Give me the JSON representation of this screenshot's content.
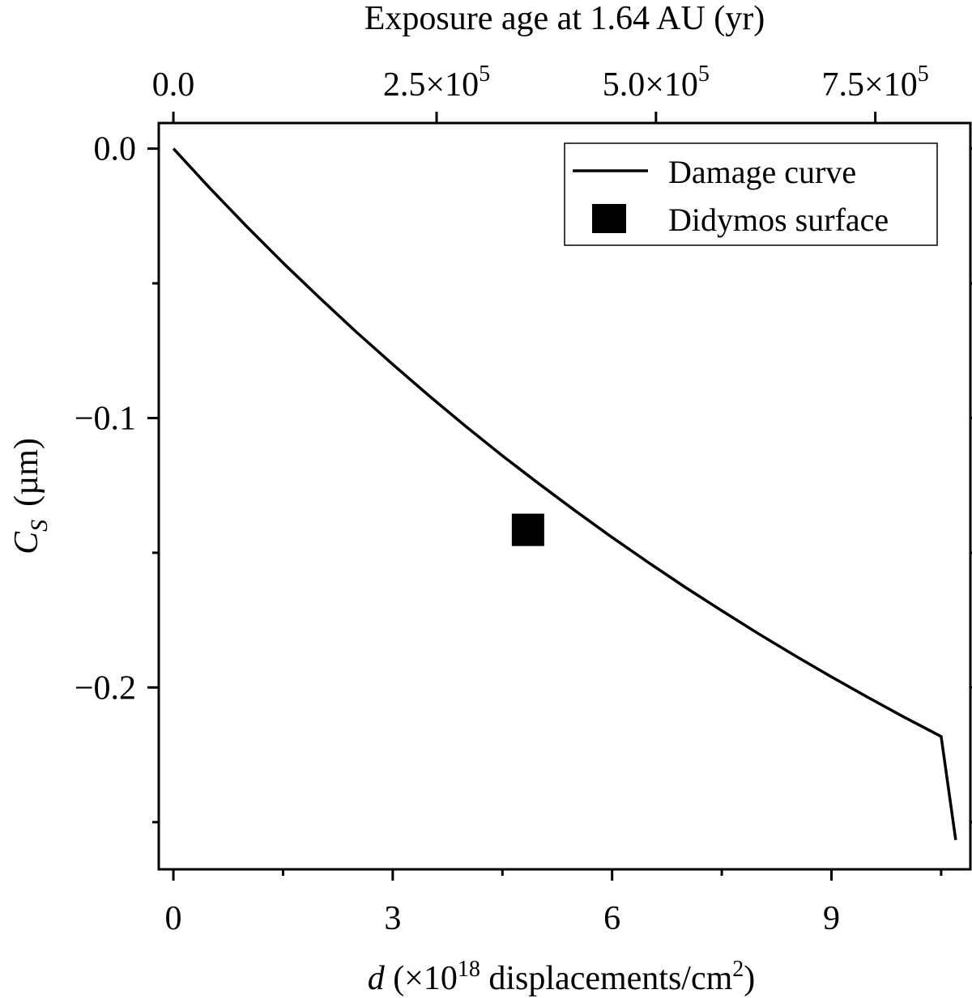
{
  "chart_data": {
    "type": "line",
    "x_axis": {
      "label_var": "d",
      "label_pre": " (×10",
      "label_exp": "18",
      "label_mid": " displacements/cm",
      "label_exp2": "2",
      "label_post": ")",
      "range": [
        -0.2,
        10.9
      ],
      "ticks": [
        0,
        3,
        6,
        9
      ],
      "tick_labels": [
        "0",
        "3",
        "6",
        "9"
      ],
      "minor_ticks": [
        1.5,
        4.5,
        7.5,
        10.5
      ]
    },
    "top_axis": {
      "label": "Exposure age at 1.64 AU (yr)",
      "ticks": [
        0,
        3.6,
        6.6,
        9.6
      ],
      "tick_labels": [
        {
          "mant": "0.0",
          "exp": ""
        },
        {
          "mant": "2.5×10",
          "exp": "5"
        },
        {
          "mant": "5.0×10",
          "exp": "5"
        },
        {
          "mant": "7.5×10",
          "exp": "5"
        }
      ]
    },
    "y_axis": {
      "label_var": "C",
      "label_sub": "S",
      "label_unit": "(µm)",
      "range": [
        -0.2675,
        0.0095
      ],
      "ticks": [
        0.0,
        -0.1,
        -0.2
      ],
      "tick_labels": [
        "0.0",
        "−0.1",
        "−0.2"
      ],
      "minor_ticks": [
        -0.05,
        -0.15,
        -0.25
      ]
    },
    "series": [
      {
        "name": "Damage curve",
        "kind": "line",
        "color": "#000000",
        "x": [
          0,
          0.5,
          1,
          1.5,
          2,
          2.5,
          3,
          3.5,
          4,
          4.5,
          5,
          5.5,
          6,
          6.5,
          7,
          7.5,
          8,
          8.5,
          9,
          9.5,
          10,
          10.5,
          10.7
        ],
        "y": [
          0.0,
          -0.0147,
          -0.0288,
          -0.0424,
          -0.0554,
          -0.068,
          -0.0801,
          -0.0918,
          -0.1031,
          -0.114,
          -0.1244,
          -0.1345,
          -0.1443,
          -0.1537,
          -0.1628,
          -0.1715,
          -0.18,
          -0.1882,
          -0.1961,
          -0.2037,
          -0.2111,
          -0.2182,
          -0.2566
        ]
      },
      {
        "name": "Didymos surface",
        "kind": "marker",
        "marker": "square",
        "color": "#000000",
        "x": [
          4.85
        ],
        "y": [
          -0.1415
        ]
      }
    ],
    "legend": {
      "position": "top-right"
    },
    "grid": false
  }
}
